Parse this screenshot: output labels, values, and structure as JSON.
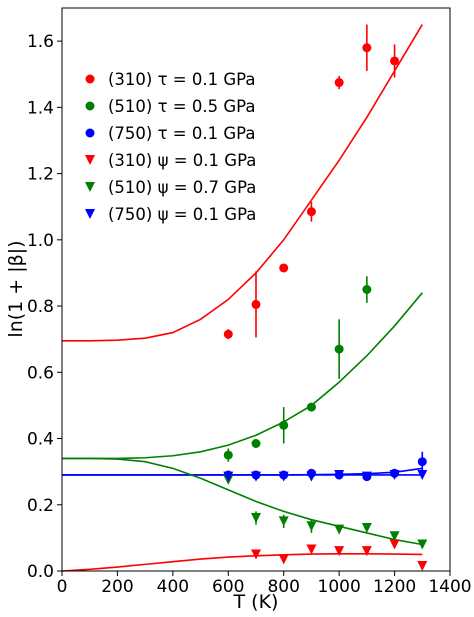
{
  "chart_data": {
    "type": "scatter",
    "title": "",
    "xlabel": "T (K)",
    "ylabel": "ln(1 + |β|)",
    "xlim": [
      0,
      1400
    ],
    "ylim": [
      0.0,
      1.7
    ],
    "xticks": [
      0,
      200,
      400,
      600,
      800,
      1000,
      1200,
      1400
    ],
    "xtick_labels": [
      "0",
      "200",
      "400",
      "600",
      "800",
      "1000",
      "1200",
      "1400"
    ],
    "yticks": [
      0.0,
      0.2,
      0.4,
      0.6,
      0.8,
      1.0,
      1.2,
      1.4,
      1.6
    ],
    "ytick_labels": [
      "0.0",
      "0.2",
      "0.4",
      "0.6",
      "0.8",
      "1.0",
      "1.2",
      "1.4",
      "1.6"
    ],
    "grid": false,
    "legend_position": "upper-left",
    "series": [
      {
        "name": "(310) τ = 0.1 GPa",
        "color": "#ff0000",
        "marker": "circle",
        "x": [
          600,
          700,
          800,
          900,
          1000,
          1100,
          1200
        ],
        "y": [
          0.715,
          0.805,
          0.915,
          1.085,
          1.475,
          1.58,
          1.54
        ],
        "err": [
          0.015,
          0.1,
          0.0,
          0.03,
          0.02,
          0.07,
          0.05
        ]
      },
      {
        "name": "(510) τ = 0.5 GPa",
        "color": "#008000",
        "marker": "circle",
        "x": [
          600,
          700,
          800,
          900,
          1000,
          1100
        ],
        "y": [
          0.35,
          0.385,
          0.44,
          0.495,
          0.67,
          0.85
        ],
        "err": [
          0.02,
          0.0,
          0.055,
          0.0,
          0.09,
          0.04
        ]
      },
      {
        "name": "(750) τ = 0.1 GPa",
        "color": "#0000ff",
        "marker": "circle",
        "x": [
          600,
          700,
          800,
          900,
          1000,
          1100,
          1200,
          1300
        ],
        "y": [
          0.29,
          0.29,
          0.29,
          0.295,
          0.29,
          0.285,
          0.295,
          0.33
        ],
        "err": [
          0.0,
          0.0,
          0.0,
          0.0,
          0.0,
          0.0,
          0.0,
          0.03
        ]
      },
      {
        "name": "(310) ψ = 0.1 GPa",
        "color": "#ff0000",
        "marker": "triangle-down",
        "x": [
          700,
          800,
          900,
          1000,
          1100,
          1200,
          1300
        ],
        "y": [
          0.05,
          0.035,
          0.065,
          0.06,
          0.06,
          0.08,
          0.015
        ],
        "err": [
          0.0,
          0.0,
          0.0,
          0.0,
          0.0,
          0.0,
          0.0
        ]
      },
      {
        "name": "(510) ψ = 0.7 GPa",
        "color": "#008000",
        "marker": "triangle-down",
        "x": [
          600,
          700,
          800,
          900,
          1000,
          1100,
          1200,
          1300
        ],
        "y": [
          0.275,
          0.16,
          0.15,
          0.135,
          0.125,
          0.13,
          0.105,
          0.08
        ],
        "err": [
          0.0,
          0.02,
          0.02,
          0.02,
          0.0,
          0.0,
          0.0,
          0.0
        ]
      },
      {
        "name": "(750) ψ = 0.1 GPa",
        "color": "#0000ff",
        "marker": "triangle-down",
        "x": [
          600,
          700,
          800,
          900,
          1000,
          1100,
          1200,
          1300
        ],
        "y": [
          0.285,
          0.285,
          0.285,
          0.285,
          0.29,
          0.285,
          0.29,
          0.29
        ],
        "err": [
          0.0,
          0.0,
          0.0,
          0.0,
          0.0,
          0.0,
          0.0,
          0.0
        ]
      }
    ],
    "fit_lines": [
      {
        "color": "#ff0000",
        "x": [
          0,
          100,
          200,
          300,
          400,
          500,
          600,
          700,
          800,
          900,
          1000,
          1100,
          1200,
          1300
        ],
        "y": [
          0.695,
          0.695,
          0.697,
          0.703,
          0.72,
          0.76,
          0.82,
          0.9,
          1.0,
          1.12,
          1.24,
          1.37,
          1.51,
          1.65
        ]
      },
      {
        "color": "#008000",
        "x": [
          0,
          100,
          200,
          300,
          400,
          500,
          600,
          700,
          800,
          900,
          1000,
          1100,
          1200,
          1300
        ],
        "y": [
          0.34,
          0.34,
          0.34,
          0.342,
          0.348,
          0.36,
          0.38,
          0.41,
          0.45,
          0.5,
          0.57,
          0.65,
          0.74,
          0.84
        ]
      },
      {
        "color": "#0000ff",
        "x": [
          0,
          200,
          400,
          600,
          800,
          900,
          1000,
          1100,
          1200,
          1300
        ],
        "y": [
          0.29,
          0.29,
          0.29,
          0.29,
          0.29,
          0.291,
          0.292,
          0.294,
          0.298,
          0.31
        ]
      },
      {
        "color": "#0000ff",
        "x": [
          0,
          400,
          800,
          1000,
          1200,
          1300
        ],
        "y": [
          0.29,
          0.29,
          0.29,
          0.29,
          0.29,
          0.29
        ]
      },
      {
        "color": "#008000",
        "x": [
          0,
          100,
          200,
          300,
          400,
          500,
          600,
          700,
          800,
          900,
          1000,
          1100,
          1200,
          1300
        ],
        "y": [
          0.34,
          0.34,
          0.338,
          0.33,
          0.31,
          0.28,
          0.245,
          0.21,
          0.18,
          0.155,
          0.135,
          0.115,
          0.095,
          0.08
        ]
      },
      {
        "color": "#ff0000",
        "x": [
          0,
          100,
          200,
          300,
          400,
          500,
          600,
          700,
          800,
          900,
          1000,
          1100,
          1200,
          1300
        ],
        "y": [
          0.0,
          0.005,
          0.012,
          0.02,
          0.028,
          0.036,
          0.042,
          0.046,
          0.049,
          0.051,
          0.052,
          0.052,
          0.051,
          0.05
        ]
      }
    ]
  }
}
